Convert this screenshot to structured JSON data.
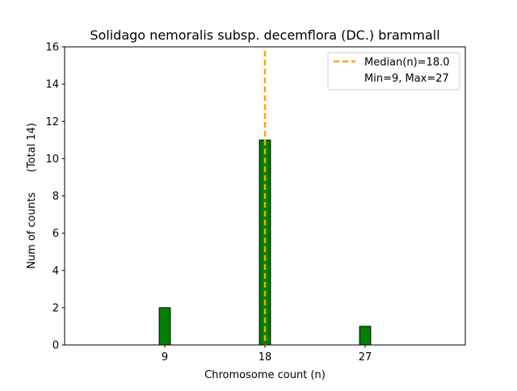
{
  "chart_data": {
    "type": "bar",
    "title": "Solidago nemoralis subsp. decemflora (DC.) brammall",
    "xlabel": "Chromosome count (n)",
    "ylabel": "Num of counts      (Total 14)",
    "x_ticks": [
      9,
      18,
      27
    ],
    "y_ticks": [
      0,
      2,
      4,
      6,
      8,
      10,
      12,
      14,
      16
    ],
    "xlim": [
      0,
      36
    ],
    "ylim": [
      0,
      16
    ],
    "bars": [
      {
        "x": 9,
        "value": 2
      },
      {
        "x": 18,
        "value": 11
      },
      {
        "x": 27,
        "value": 1
      }
    ],
    "bar_color": "#008000",
    "bar_edge_color": "#000000",
    "median": {
      "x": 18.0,
      "color": "#ffa500"
    },
    "legend": {
      "position": "top-right",
      "entries": [
        "Median(n)=18.0",
        "Min=9, Max=27"
      ]
    },
    "grid": false
  }
}
